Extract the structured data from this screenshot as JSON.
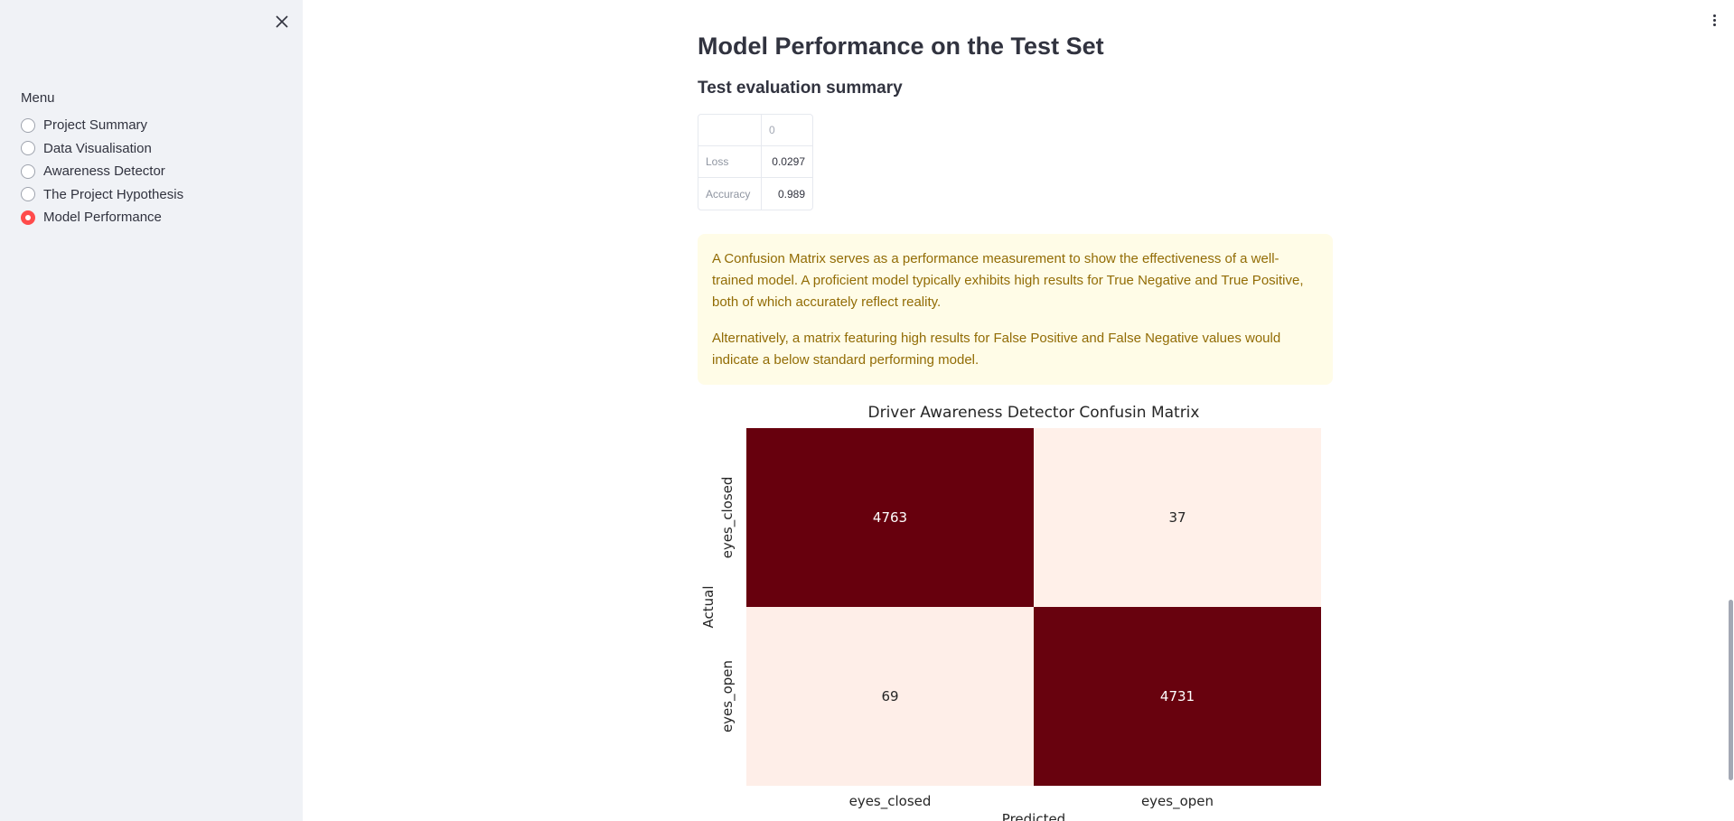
{
  "sidebar": {
    "menu_label": "Menu",
    "items": [
      {
        "label": "Project Summary",
        "selected": false
      },
      {
        "label": "Data Visualisation",
        "selected": false
      },
      {
        "label": "Awareness Detector",
        "selected": false
      },
      {
        "label": "The Project Hypothesis",
        "selected": false
      },
      {
        "label": "Model Performance",
        "selected": true
      }
    ]
  },
  "main": {
    "title": "Model Performance on the Test Set",
    "subheader": "Test evaluation summary",
    "summary_table": {
      "column_header": "0",
      "rows": [
        {
          "label": "Loss",
          "value": "0.0297"
        },
        {
          "label": "Accuracy",
          "value": "0.989"
        }
      ]
    },
    "info_box": {
      "paragraph1": "A Confusion Matrix serves as a performance measurement to show the effectiveness of a well-trained model. A proficient model typically exhibits high results for True Negative and True Positive, both of which accurately reflect reality.",
      "paragraph2": "Alternatively, a matrix featuring high results for False Positive and False Negative values would indicate a below standard performing model."
    }
  },
  "colors": {
    "accent": "#ff4b4b",
    "heat_high": "#67000d",
    "heat_low": "#fff0e9",
    "info_bg": "#fffce7",
    "info_text": "#926c05"
  },
  "chart_data": {
    "type": "heatmap",
    "title": "Driver Awareness Detector Confusin Matrix",
    "xlabel": "Predicted",
    "ylabel": "Actual",
    "x_categories": [
      "eyes_closed",
      "eyes_open"
    ],
    "y_categories": [
      "eyes_closed",
      "eyes_open"
    ],
    "values": [
      [
        4763,
        37
      ],
      [
        69,
        4731
      ]
    ],
    "colorbar": false
  }
}
